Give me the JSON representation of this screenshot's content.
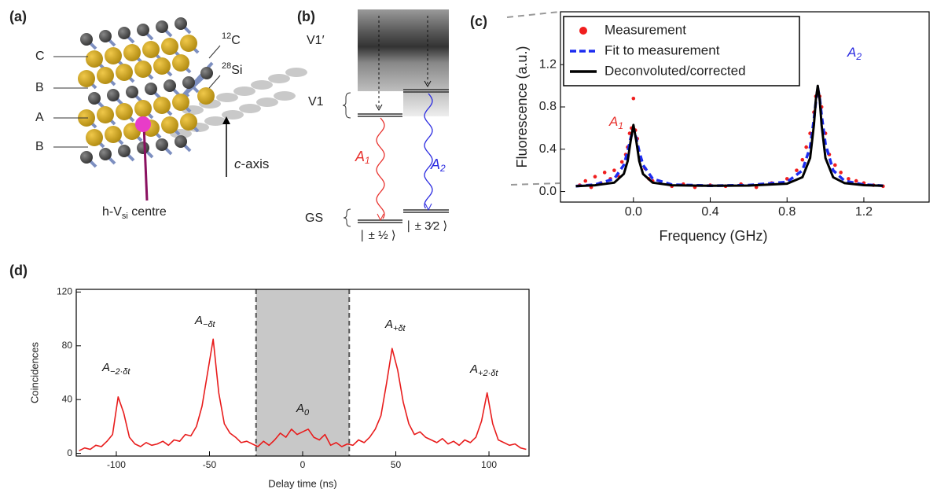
{
  "panels": {
    "a": {
      "label": "(a)",
      "layers": [
        "C",
        "B",
        "A",
        "B"
      ],
      "isotopes": [
        {
          "sup": "12",
          "text": "C"
        },
        {
          "sup": "28",
          "text": "Si"
        }
      ],
      "axis": {
        "italic": "c",
        "text": "-axis"
      },
      "centre": {
        "text": "h-V",
        "sub": "si",
        "after": " centre"
      }
    },
    "b": {
      "label": "(b)",
      "levels": [
        "V1′",
        "V1",
        "GS"
      ],
      "transitions": [
        {
          "text": "A",
          "sub": "1"
        },
        {
          "text": "A",
          "sub": "2"
        }
      ],
      "states": [
        "∣ ± ½ ⟩",
        "∣ ± 3⁄2 ⟩"
      ]
    }
  },
  "chart_data": [
    {
      "type": "line",
      "label": "(c)",
      "x_label": "Frequency (GHz)",
      "y_label": "Fluorescence (a.u.)",
      "legend": "upper left",
      "grid": false,
      "xlim": [
        -0.38,
        1.54
      ],
      "ylim": [
        -0.1,
        1.7
      ],
      "xticks": [
        {
          "value": 0,
          "label": "0.0"
        },
        0.4,
        0.8,
        1.2
      ],
      "yticks": [
        {
          "value": 0,
          "label": "0.0"
        },
        0.4,
        0.8,
        1.2
      ],
      "annotations": [
        {
          "text": "A",
          "sub": "1",
          "color": "#e8322e"
        },
        {
          "text": "A",
          "sub": "2",
          "color": "#2a2ae0"
        }
      ],
      "series": [
        {
          "name": "Measurement",
          "color": "#f01e1e",
          "style": "markers",
          "x": [
            -0.28,
            -0.25,
            -0.22,
            -0.2,
            -0.17,
            -0.15,
            -0.12,
            -0.1,
            -0.08,
            -0.06,
            -0.04,
            -0.03,
            -0.02,
            -0.01,
            0,
            0.01,
            0.02,
            0.04,
            0.06,
            0.08,
            0.1,
            0.14,
            0.2,
            0.26,
            0.32,
            0.4,
            0.48,
            0.56,
            0.64,
            0.72,
            0.8,
            0.85,
            0.88,
            0.9,
            0.92,
            0.94,
            0.95,
            0.96,
            0.97,
            0.98,
            1.0,
            1.02,
            1.05,
            1.08,
            1.12,
            1.16,
            1.2,
            1.25,
            1.3
          ],
          "values": [
            0.06,
            0.1,
            0.04,
            0.14,
            0.08,
            0.18,
            0.12,
            0.2,
            0.15,
            0.28,
            0.35,
            0.42,
            0.55,
            0.6,
            0.88,
            0.58,
            0.5,
            0.3,
            0.22,
            0.12,
            0.1,
            0.08,
            0.05,
            0.07,
            0.04,
            0.06,
            0.05,
            0.07,
            0.04,
            0.08,
            0.12,
            0.2,
            0.3,
            0.42,
            0.55,
            0.75,
            0.9,
            0.95,
            0.9,
            0.8,
            0.55,
            0.35,
            0.25,
            0.18,
            0.12,
            0.1,
            0.08,
            0.06,
            0.05
          ]
        },
        {
          "name": "Fit to measurement",
          "color": "#1c2cf0",
          "style": "dashed",
          "x": [
            -0.3,
            -0.2,
            -0.1,
            -0.05,
            -0.03,
            -0.015,
            0,
            0.015,
            0.03,
            0.05,
            0.1,
            0.2,
            0.4,
            0.6,
            0.8,
            0.88,
            0.92,
            0.94,
            0.95,
            0.96,
            0.97,
            0.98,
            1.0,
            1.04,
            1.1,
            1.2,
            1.3
          ],
          "values": [
            0.05,
            0.065,
            0.12,
            0.25,
            0.38,
            0.5,
            0.6,
            0.5,
            0.38,
            0.25,
            0.12,
            0.065,
            0.055,
            0.06,
            0.09,
            0.2,
            0.42,
            0.68,
            0.85,
            0.98,
            0.88,
            0.72,
            0.45,
            0.2,
            0.1,
            0.065,
            0.055
          ]
        },
        {
          "name": "Deconvoluted/corrected",
          "color": "#000000",
          "style": "solid",
          "x": [
            -0.3,
            -0.2,
            -0.1,
            -0.05,
            -0.03,
            -0.015,
            0,
            0.015,
            0.03,
            0.05,
            0.1,
            0.2,
            0.4,
            0.6,
            0.8,
            0.88,
            0.92,
            0.94,
            0.95,
            0.96,
            0.97,
            0.98,
            1.0,
            1.04,
            1.1,
            1.2,
            1.3
          ],
          "values": [
            0.05,
            0.059,
            0.084,
            0.166,
            0.288,
            0.476,
            0.63,
            0.476,
            0.288,
            0.166,
            0.084,
            0.059,
            0.054,
            0.056,
            0.074,
            0.135,
            0.317,
            0.629,
            0.869,
            1.0,
            0.869,
            0.629,
            0.317,
            0.135,
            0.079,
            0.06,
            0.055
          ]
        }
      ]
    },
    {
      "type": "line",
      "label": "(d)",
      "x_label": "Delay time (ns)",
      "y_label": "Coincidences",
      "grid": false,
      "color": "#e81c1c",
      "xlim": [
        -121.5,
        121.5
      ],
      "ylim": [
        -2,
        122
      ],
      "xticks": [
        -100,
        -50,
        0,
        50,
        100
      ],
      "yticks": [
        0,
        40,
        80,
        120
      ],
      "highlight_x": [
        -25,
        25
      ],
      "annotations": [
        {
          "text": "A",
          "sub": "−2·δt"
        },
        {
          "text": "A",
          "sub": "−δt"
        },
        {
          "text": "A",
          "sub": "0"
        },
        {
          "text": "A",
          "sub": "+δt"
        },
        {
          "text": "A",
          "sub": "+2·δt"
        }
      ],
      "x": [
        -120,
        -117,
        -114,
        -111,
        -108,
        -105,
        -102,
        -99,
        -96,
        -93,
        -90,
        -87,
        -84,
        -81,
        -78,
        -75,
        -72,
        -69,
        -66,
        -63,
        -60,
        -57,
        -54,
        -51,
        -48,
        -45,
        -42,
        -39,
        -36,
        -33,
        -30,
        -27,
        -24,
        -21,
        -18,
        -15,
        -12,
        -9,
        -6,
        -3,
        0,
        3,
        6,
        9,
        12,
        15,
        18,
        21,
        24,
        27,
        30,
        33,
        36,
        39,
        42,
        45,
        48,
        51,
        54,
        57,
        60,
        63,
        66,
        69,
        72,
        75,
        78,
        81,
        84,
        87,
        90,
        93,
        96,
        99,
        102,
        105,
        108,
        111,
        114,
        117,
        120
      ],
      "values": [
        2,
        4,
        3,
        6,
        5,
        9,
        14,
        42,
        30,
        12,
        7,
        5,
        8,
        6,
        7,
        9,
        6,
        10,
        9,
        14,
        13,
        20,
        35,
        60,
        85,
        45,
        22,
        15,
        12,
        8,
        9,
        7,
        5,
        9,
        6,
        10,
        15,
        12,
        18,
        14,
        16,
        18,
        12,
        10,
        14,
        6,
        8,
        5,
        7,
        6,
        10,
        8,
        12,
        18,
        28,
        52,
        78,
        62,
        38,
        22,
        14,
        16,
        12,
        10,
        8,
        11,
        7,
        9,
        6,
        10,
        8,
        12,
        24,
        45,
        22,
        10,
        8,
        6,
        7,
        4,
        3
      ]
    }
  ]
}
